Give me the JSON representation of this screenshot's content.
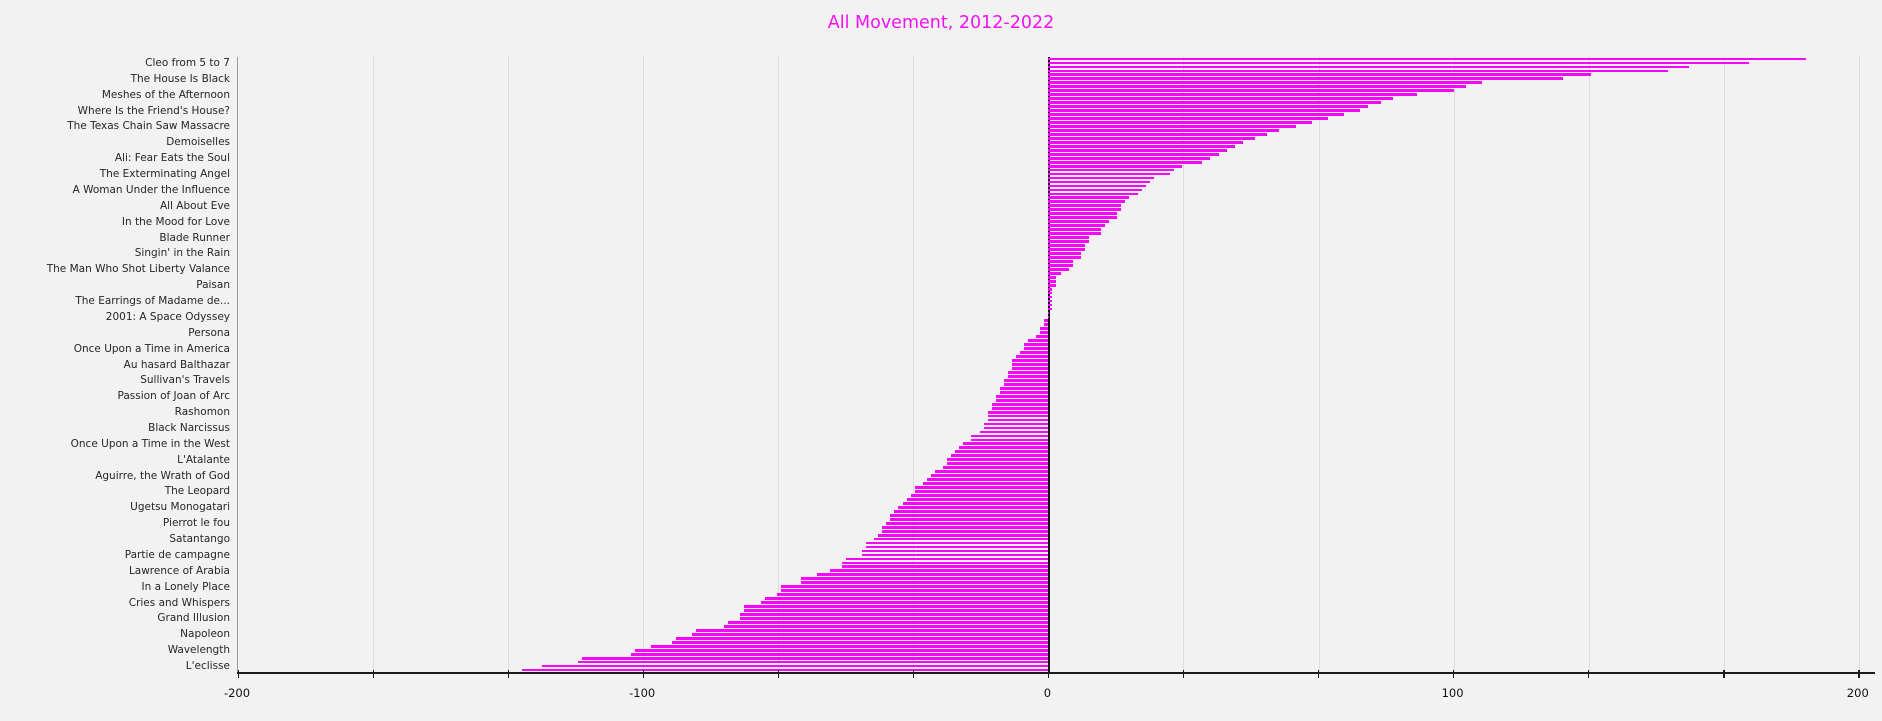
{
  "chart_data": {
    "type": "bar",
    "orientation": "horizontal",
    "title": "All Movement, 2012-2022",
    "xlabel": "",
    "ylabel": "",
    "legend_position": "none",
    "grid": "vertical",
    "background_color": "#f2f2f2",
    "bar_color": "#f707f7",
    "title_color": "#f312f3",
    "grid_color": "#dcdcdc",
    "zero_line_color": "#141414",
    "axis_color": "#1c1c1c",
    "xlim": [
      -200,
      204
    ],
    "x_tick_values": [
      -200,
      -100,
      0,
      100,
      200
    ],
    "x_tick_labels": [
      "-200",
      "-100",
      "0",
      "100",
      "200"
    ],
    "minor_tick_step": 33.3333,
    "label_start_index": 1,
    "label_every": 4,
    "categories": [
      "Cleo from 5 to 7",
      "The House Is Black",
      "Meshes of the Afternoon",
      "Where Is the Friend's House?",
      "The Texas Chain Saw Massacre",
      "Demoiselles",
      "Ali: Fear Eats the Soul",
      "The Exterminating Angel",
      "A Woman Under the Influence",
      "All About Eve",
      "In the Mood for Love",
      "Blade Runner",
      "Singin' in the Rain",
      "The Man Who Shot Liberty Valance",
      "Paisan",
      "The Earrings of Madame de...",
      "2001: A Space Odyssey",
      "Persona",
      "Once Upon a Time in America",
      "Au hasard Balthazar",
      "Sullivan's Travels",
      "Passion of Joan of Arc",
      "Rashomon",
      "Black Narcissus",
      "Once Upon a Time in the West",
      "L'Atalante",
      "Aguirre, the Wrath of God",
      "The Leopard",
      "Ugetsu Monogatari",
      "Pierrot le fou",
      "Satantango",
      "Partie de campagne",
      "Lawrence of Arabia",
      "In a Lonely Place",
      "Cries and Whispers",
      "Grand Illusion",
      "Napoleon",
      "Wavelength",
      "L'eclisse"
    ],
    "category_values": [
      173,
      127,
      91,
      77,
      61,
      48,
      40,
      30,
      23,
      18,
      15,
      10,
      8,
      5,
      2,
      1,
      0,
      -2,
      -6,
      -9,
      -11,
      -13,
      -15,
      -16,
      -21,
      -25,
      -29,
      -33,
      -37,
      -40,
      -43,
      -46,
      -54,
      -66,
      -70,
      -76,
      -88,
      -102,
      -125
    ],
    "values": [
      187,
      173,
      158,
      153,
      134,
      127,
      107,
      103,
      100,
      91,
      85,
      82,
      79,
      77,
      73,
      69,
      65,
      61,
      57,
      54,
      51,
      48,
      46,
      44,
      42,
      40,
      38,
      33,
      31,
      30,
      26,
      25,
      24,
      23,
      22,
      20,
      19,
      18,
      18,
      17,
      17,
      15,
      14,
      13,
      13,
      10,
      10,
      9,
      9,
      8,
      8,
      6,
      6,
      5,
      3,
      2,
      2,
      2,
      1,
      1,
      1,
      1,
      1,
      1,
      0,
      0,
      -1,
      -1,
      -2,
      -2,
      -3,
      -5,
      -6,
      -6,
      -7,
      -8,
      -9,
      -9,
      -9,
      -10,
      -10,
      -11,
      -11,
      -12,
      -12,
      -13,
      -13,
      -14,
      -14,
      -15,
      -15,
      -15,
      -16,
      -16,
      -17,
      -19,
      -19,
      -21,
      -22,
      -23,
      -24,
      -25,
      -25,
      -26,
      -28,
      -29,
      -30,
      -31,
      -33,
      -33,
      -34,
      -35,
      -36,
      -37,
      -38,
      -39,
      -39,
      -40,
      -41,
      -41,
      -42,
      -43,
      -45,
      -45,
      -46,
      -46,
      -50,
      -51,
      -51,
      -54,
      -57,
      -61,
      -61,
      -66,
      -66,
      -67,
      -70,
      -71,
      -75,
      -75,
      -76,
      -76,
      -79,
      -80,
      -87,
      -88,
      -92,
      -93,
      -98,
      -102,
      -103,
      -115,
      -116,
      -125,
      -130
    ]
  }
}
